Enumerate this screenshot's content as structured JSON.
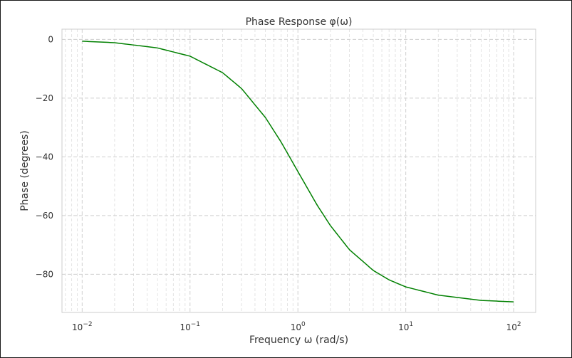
{
  "chart_data": {
    "type": "line",
    "title": "Phase Response φ(ω)",
    "xlabel": "Frequency ω (rad/s)",
    "ylabel": "Phase (degrees)",
    "xscale": "log",
    "xlim": [
      0.0065,
      160
    ],
    "ylim": [
      -93,
      3.5
    ],
    "grid": true,
    "legend": "none",
    "x_ticks": [
      {
        "value": 0.01,
        "base": "10",
        "exp": "−2"
      },
      {
        "value": 0.1,
        "base": "10",
        "exp": "−1"
      },
      {
        "value": 1,
        "base": "10",
        "exp": "0"
      },
      {
        "value": 10,
        "base": "10",
        "exp": "1"
      },
      {
        "value": 100,
        "base": "10",
        "exp": "2"
      }
    ],
    "y_ticks": [
      {
        "value": 0,
        "label": "0"
      },
      {
        "value": -20,
        "label": "−20"
      },
      {
        "value": -40,
        "label": "−40"
      },
      {
        "value": -60,
        "label": "−60"
      },
      {
        "value": -80,
        "label": "−80"
      }
    ],
    "series": [
      {
        "color": "#008000",
        "x": [
          0.01,
          0.02,
          0.05,
          0.1,
          0.2,
          0.3,
          0.5,
          0.7,
          1,
          1.5,
          2,
          3,
          5,
          7,
          10,
          20,
          50,
          100
        ],
        "y": [
          -0.6,
          -1.1,
          -2.9,
          -5.7,
          -11.3,
          -16.7,
          -26.6,
          -35.0,
          -45.0,
          -56.3,
          -63.4,
          -71.6,
          -78.7,
          -81.9,
          -84.3,
          -87.1,
          -88.9,
          -89.4
        ]
      }
    ]
  }
}
